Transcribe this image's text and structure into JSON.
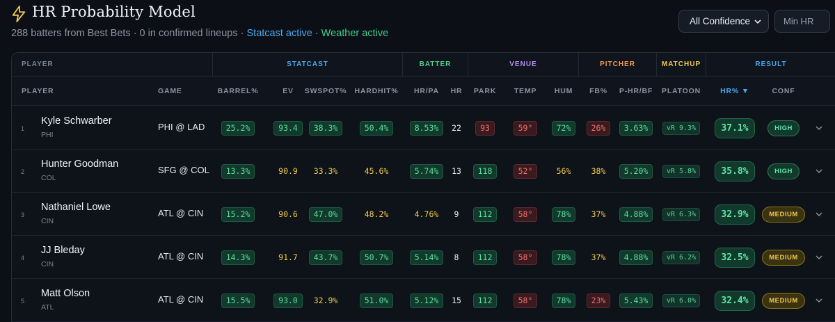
{
  "header": {
    "title": "HR Probability Model",
    "subtitle_main": "288 batters from Best Bets · 0 in confirmed lineups ·",
    "statcast_status": "Statcast active",
    "weather_status": "· Weather active",
    "confidence_select": "All Confidence",
    "min_hr_placeholder": "Min HR"
  },
  "colors": {
    "accent_blue": "#4aa8f0",
    "accent_green": "#3fcf8e",
    "batter_green": "#4fd18b",
    "venue_purple": "#b68cf5",
    "pitcher_orange": "#f2994a",
    "matchup_yellow": "#f2c94c"
  },
  "groups": {
    "player": "PLAYER",
    "statcast": "STATCAST",
    "batter": "BATTER",
    "venue": "VENUE",
    "pitcher": "PITCHER",
    "matchup": "MATCHUP",
    "result": "RESULT"
  },
  "columns": {
    "player": "PLAYER",
    "game": "GAME",
    "barrel": "BARREL%",
    "ev": "EV",
    "swspot": "SWSPOT%",
    "hardhit": "HARDHIT%",
    "hrpa": "HR/PA",
    "hr": "HR",
    "park": "PARK",
    "temp": "TEMP",
    "hum": "HUM",
    "fb": "FB%",
    "phrbf": "P-HR/BF",
    "platoon": "PLATOON",
    "hrpct": "HR% ▼",
    "conf": "CONF"
  },
  "rows": [
    {
      "rank": "1",
      "name": "Kyle Schwarber",
      "team": "PHI",
      "game": "PHI @ LAD",
      "barrel": "25.2%",
      "ev": "93.4",
      "swspot": "38.3%",
      "hardhit": "50.4%",
      "hrpa": "8.53%",
      "hr": "22",
      "park": "93",
      "temp": "59°",
      "hum": "72%",
      "fb": "26%",
      "phrbf": "3.63%",
      "platoon": "vR 9.3%",
      "hrpct": "37.1%",
      "conf": "HIGH"
    },
    {
      "rank": "2",
      "name": "Hunter Goodman",
      "team": "COL",
      "game": "SFG @ COL",
      "barrel": "13.3%",
      "ev": "90.9",
      "swspot": "33.3%",
      "hardhit": "45.6%",
      "hrpa": "5.74%",
      "hr": "13",
      "park": "118",
      "temp": "52°",
      "hum": "56%",
      "fb": "38%",
      "phrbf": "5.20%",
      "platoon": "vR 5.8%",
      "hrpct": "35.8%",
      "conf": "HIGH"
    },
    {
      "rank": "3",
      "name": "Nathaniel Lowe",
      "team": "CIN",
      "game": "ATL @ CIN",
      "barrel": "15.2%",
      "ev": "90.6",
      "swspot": "47.0%",
      "hardhit": "48.2%",
      "hrpa": "4.76%",
      "hr": "9",
      "park": "112",
      "temp": "58°",
      "hum": "78%",
      "fb": "37%",
      "phrbf": "4.88%",
      "platoon": "vR 6.3%",
      "hrpct": "32.9%",
      "conf": "MEDIUM"
    },
    {
      "rank": "4",
      "name": "JJ Bleday",
      "team": "CIN",
      "game": "ATL @ CIN",
      "barrel": "14.3%",
      "ev": "91.7",
      "swspot": "43.7%",
      "hardhit": "50.7%",
      "hrpa": "5.14%",
      "hr": "8",
      "park": "112",
      "temp": "58°",
      "hum": "78%",
      "fb": "37%",
      "phrbf": "4.88%",
      "platoon": "vR 6.2%",
      "hrpct": "32.5%",
      "conf": "MEDIUM"
    },
    {
      "rank": "5",
      "name": "Matt Olson",
      "team": "ATL",
      "game": "ATL @ CIN",
      "barrel": "15.5%",
      "ev": "93.0",
      "swspot": "32.9%",
      "hardhit": "51.0%",
      "hrpa": "5.12%",
      "hr": "15",
      "park": "112",
      "temp": "58°",
      "hum": "78%",
      "fb": "23%",
      "phrbf": "5.43%",
      "platoon": "vR 6.0%",
      "hrpct": "32.4%",
      "conf": "MEDIUM"
    }
  ]
}
